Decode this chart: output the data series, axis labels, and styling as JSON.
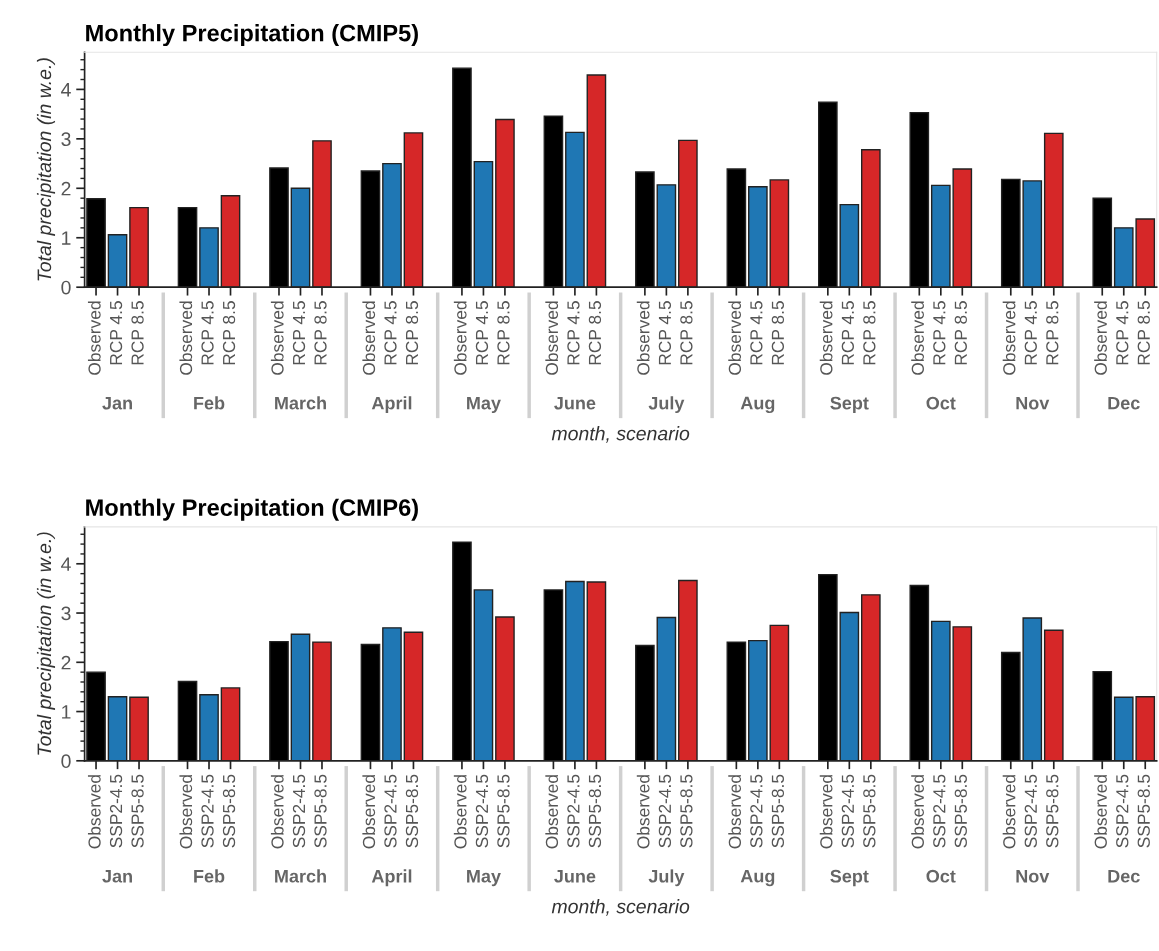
{
  "chart_data": [
    {
      "type": "bar",
      "title": "Monthly Precipitation (CMIP5)",
      "xlabel": "month, scenario",
      "ylabel": "Total precipitation (in w.e.)",
      "categories": [
        "Jan",
        "Feb",
        "March",
        "April",
        "May",
        "June",
        "July",
        "Aug",
        "Sept",
        "Oct",
        "Nov",
        "Dec"
      ],
      "series": [
        {
          "name": "Observed",
          "color": "#000000",
          "values": [
            1.79,
            1.61,
            2.41,
            2.35,
            4.43,
            3.46,
            2.33,
            2.39,
            3.74,
            3.53,
            2.18,
            1.8
          ]
        },
        {
          "name": "RCP 4.5",
          "color": "#1f77b4",
          "values": [
            1.06,
            1.2,
            2.0,
            2.5,
            2.54,
            3.13,
            2.07,
            2.03,
            1.67,
            2.06,
            2.15,
            1.2
          ]
        },
        {
          "name": "RCP 8.5",
          "color": "#d62728",
          "values": [
            1.61,
            1.85,
            2.96,
            3.12,
            3.39,
            4.29,
            2.97,
            2.17,
            2.78,
            2.39,
            3.11,
            1.38
          ]
        }
      ],
      "ylim": [
        0,
        4.75
      ],
      "yticks": [
        0,
        1,
        2,
        3,
        4
      ],
      "grid": false,
      "legend": "bottom"
    },
    {
      "type": "bar",
      "title": "Monthly Precipitation (CMIP6)",
      "xlabel": "month, scenario",
      "ylabel": "Total precipitation (in w.e.)",
      "categories": [
        "Jan",
        "Feb",
        "March",
        "April",
        "May",
        "June",
        "July",
        "Aug",
        "Sept",
        "Oct",
        "Nov",
        "Dec"
      ],
      "series": [
        {
          "name": "Observed",
          "color": "#000000",
          "values": [
            1.8,
            1.61,
            2.42,
            2.36,
            4.44,
            3.47,
            2.34,
            2.41,
            3.78,
            3.56,
            2.2,
            1.81
          ]
        },
        {
          "name": "SSP2-4.5",
          "color": "#1f77b4",
          "values": [
            1.3,
            1.34,
            2.57,
            2.7,
            3.47,
            3.64,
            2.91,
            2.44,
            3.01,
            2.83,
            2.9,
            1.29
          ]
        },
        {
          "name": "SSP5-8.5",
          "color": "#d62728",
          "values": [
            1.29,
            1.48,
            2.41,
            2.61,
            2.92,
            3.63,
            3.66,
            2.75,
            3.37,
            2.72,
            2.65,
            1.3
          ]
        }
      ],
      "ylim": [
        0,
        4.75
      ],
      "yticks": [
        0,
        1,
        2,
        3,
        4
      ],
      "grid": false,
      "legend": "bottom"
    }
  ]
}
